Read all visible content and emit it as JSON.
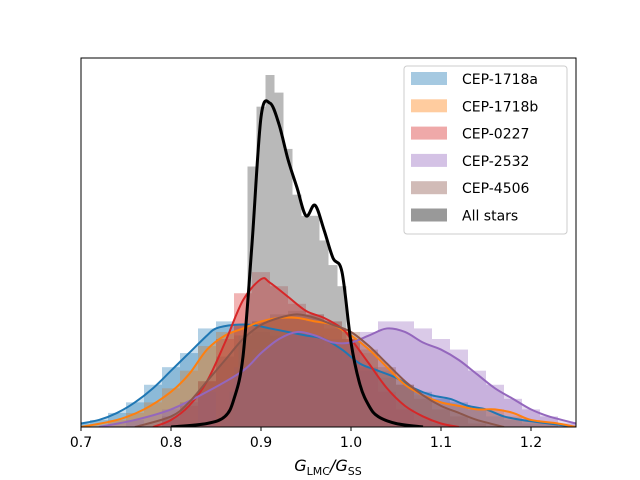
{
  "chart_data": {
    "type": "area",
    "title": "",
    "xlabel_main": "G",
    "xlabel_sub1": "LMC",
    "xlabel_mid": "/G",
    "xlabel_sub2": "SS",
    "ylabel": "",
    "xlim": [
      0.7,
      1.25
    ],
    "ylim": [
      0,
      1.0
    ],
    "x_ticks": [
      0.7,
      0.8,
      0.9,
      1.0,
      1.1,
      1.2
    ],
    "x_tick_labels": [
      "0.7",
      "0.8",
      "0.9",
      "1.0",
      "1.1",
      "1.2"
    ],
    "y_ticks_visible": false,
    "grid": false,
    "legend_position": "top-right",
    "series": [
      {
        "name": "CEP-1718a",
        "color": "#1f77b4",
        "kde": [
          [
            0.7,
            0.01
          ],
          [
            0.72,
            0.02
          ],
          [
            0.74,
            0.04
          ],
          [
            0.76,
            0.07
          ],
          [
            0.78,
            0.11
          ],
          [
            0.8,
            0.16
          ],
          [
            0.82,
            0.21
          ],
          [
            0.84,
            0.26
          ],
          [
            0.85,
            0.28
          ],
          [
            0.87,
            0.29
          ],
          [
            0.89,
            0.29
          ],
          [
            0.91,
            0.28
          ],
          [
            0.93,
            0.27
          ],
          [
            0.95,
            0.26
          ],
          [
            0.97,
            0.25
          ],
          [
            0.99,
            0.22
          ],
          [
            1.01,
            0.18
          ],
          [
            1.03,
            0.16
          ],
          [
            1.05,
            0.14
          ],
          [
            1.07,
            0.11
          ],
          [
            1.09,
            0.09
          ],
          [
            1.11,
            0.08
          ],
          [
            1.13,
            0.06
          ],
          [
            1.15,
            0.05
          ],
          [
            1.17,
            0.03
          ],
          [
            1.19,
            0.02
          ],
          [
            1.22,
            0.01
          ],
          [
            1.25,
            0.0
          ]
        ],
        "hist": [
          [
            0.7,
            0.01
          ],
          [
            0.72,
            0.02
          ],
          [
            0.74,
            0.04
          ],
          [
            0.76,
            0.07
          ],
          [
            0.78,
            0.12
          ],
          [
            0.8,
            0.17
          ],
          [
            0.82,
            0.21
          ],
          [
            0.84,
            0.28
          ],
          [
            0.86,
            0.3
          ],
          [
            0.88,
            0.29
          ],
          [
            0.9,
            0.27
          ],
          [
            0.92,
            0.26
          ],
          [
            0.94,
            0.26
          ],
          [
            0.96,
            0.25
          ],
          [
            0.98,
            0.22
          ],
          [
            1.0,
            0.19
          ],
          [
            1.02,
            0.16
          ],
          [
            1.04,
            0.14
          ],
          [
            1.06,
            0.12
          ],
          [
            1.08,
            0.1
          ],
          [
            1.1,
            0.08
          ],
          [
            1.12,
            0.07
          ],
          [
            1.14,
            0.05
          ],
          [
            1.16,
            0.03
          ],
          [
            1.18,
            0.02
          ],
          [
            1.2,
            0.01
          ],
          [
            1.22,
            0.01
          ],
          [
            1.24,
            0.0
          ]
        ]
      },
      {
        "name": "CEP-1718b",
        "color": "#ff7f0e",
        "kde": [
          [
            0.7,
            0.0
          ],
          [
            0.74,
            0.02
          ],
          [
            0.77,
            0.05
          ],
          [
            0.8,
            0.1
          ],
          [
            0.82,
            0.15
          ],
          [
            0.84,
            0.22
          ],
          [
            0.86,
            0.26
          ],
          [
            0.88,
            0.28
          ],
          [
            0.9,
            0.3
          ],
          [
            0.92,
            0.31
          ],
          [
            0.94,
            0.31
          ],
          [
            0.96,
            0.3
          ],
          [
            0.98,
            0.29
          ],
          [
            1.0,
            0.26
          ],
          [
            1.02,
            0.22
          ],
          [
            1.04,
            0.17
          ],
          [
            1.06,
            0.12
          ],
          [
            1.08,
            0.09
          ],
          [
            1.1,
            0.07
          ],
          [
            1.12,
            0.06
          ],
          [
            1.14,
            0.05
          ],
          [
            1.16,
            0.05
          ],
          [
            1.18,
            0.04
          ],
          [
            1.2,
            0.02
          ],
          [
            1.23,
            0.01
          ],
          [
            1.25,
            0.0
          ]
        ],
        "hist": [
          [
            0.74,
            0.02
          ],
          [
            0.76,
            0.04
          ],
          [
            0.78,
            0.07
          ],
          [
            0.8,
            0.11
          ],
          [
            0.82,
            0.16
          ],
          [
            0.84,
            0.23
          ],
          [
            0.86,
            0.27
          ],
          [
            0.88,
            0.29
          ],
          [
            0.9,
            0.3
          ],
          [
            0.92,
            0.31
          ],
          [
            0.94,
            0.31
          ],
          [
            0.96,
            0.3
          ],
          [
            0.98,
            0.28
          ],
          [
            1.0,
            0.25
          ],
          [
            1.02,
            0.21
          ],
          [
            1.04,
            0.16
          ],
          [
            1.06,
            0.12
          ],
          [
            1.08,
            0.09
          ],
          [
            1.1,
            0.07
          ],
          [
            1.12,
            0.06
          ],
          [
            1.14,
            0.05
          ],
          [
            1.16,
            0.05
          ],
          [
            1.18,
            0.03
          ],
          [
            1.2,
            0.02
          ],
          [
            1.22,
            0.01
          ],
          [
            1.24,
            0.0
          ]
        ]
      },
      {
        "name": "CEP-0227",
        "color": "#d62728",
        "kde": [
          [
            0.78,
            0.0
          ],
          [
            0.8,
            0.02
          ],
          [
            0.82,
            0.06
          ],
          [
            0.84,
            0.13
          ],
          [
            0.86,
            0.24
          ],
          [
            0.88,
            0.36
          ],
          [
            0.9,
            0.42
          ],
          [
            0.91,
            0.41
          ],
          [
            0.93,
            0.37
          ],
          [
            0.95,
            0.33
          ],
          [
            0.97,
            0.31
          ],
          [
            0.99,
            0.28
          ],
          [
            1.0,
            0.25
          ],
          [
            1.02,
            0.18
          ],
          [
            1.04,
            0.11
          ],
          [
            1.06,
            0.06
          ],
          [
            1.08,
            0.03
          ],
          [
            1.1,
            0.01
          ],
          [
            1.12,
            0.0
          ]
        ],
        "hist": [
          [
            0.8,
            0.02
          ],
          [
            0.82,
            0.06
          ],
          [
            0.84,
            0.13
          ],
          [
            0.86,
            0.25
          ],
          [
            0.88,
            0.38
          ],
          [
            0.9,
            0.44
          ],
          [
            0.92,
            0.4
          ],
          [
            0.94,
            0.35
          ],
          [
            0.96,
            0.32
          ],
          [
            0.98,
            0.3
          ],
          [
            1.0,
            0.25
          ],
          [
            1.02,
            0.17
          ],
          [
            1.04,
            0.1
          ],
          [
            1.06,
            0.05
          ],
          [
            1.08,
            0.02
          ],
          [
            1.1,
            0.01
          ]
        ]
      },
      {
        "name": "CEP-2532",
        "color": "#9467bd",
        "kde": [
          [
            0.72,
            0.0
          ],
          [
            0.76,
            0.02
          ],
          [
            0.8,
            0.05
          ],
          [
            0.84,
            0.1
          ],
          [
            0.88,
            0.16
          ],
          [
            0.9,
            0.21
          ],
          [
            0.92,
            0.25
          ],
          [
            0.94,
            0.27
          ],
          [
            0.96,
            0.26
          ],
          [
            0.98,
            0.24
          ],
          [
            1.0,
            0.24
          ],
          [
            1.02,
            0.26
          ],
          [
            1.04,
            0.28
          ],
          [
            1.06,
            0.27
          ],
          [
            1.08,
            0.24
          ],
          [
            1.1,
            0.22
          ],
          [
            1.12,
            0.19
          ],
          [
            1.14,
            0.15
          ],
          [
            1.16,
            0.11
          ],
          [
            1.18,
            0.08
          ],
          [
            1.2,
            0.05
          ],
          [
            1.22,
            0.03
          ],
          [
            1.25,
            0.01
          ]
        ],
        "hist": [
          [
            0.76,
            0.02
          ],
          [
            0.8,
            0.05
          ],
          [
            0.84,
            0.1
          ],
          [
            0.88,
            0.17
          ],
          [
            0.9,
            0.22
          ],
          [
            0.92,
            0.25
          ],
          [
            0.94,
            0.27
          ],
          [
            0.96,
            0.26
          ],
          [
            0.98,
            0.25
          ],
          [
            1.0,
            0.25
          ],
          [
            1.02,
            0.27
          ],
          [
            1.04,
            0.3
          ],
          [
            1.06,
            0.3
          ],
          [
            1.08,
            0.28
          ],
          [
            1.1,
            0.25
          ],
          [
            1.12,
            0.22
          ],
          [
            1.14,
            0.16
          ],
          [
            1.16,
            0.12
          ],
          [
            1.18,
            0.08
          ],
          [
            1.2,
            0.05
          ],
          [
            1.22,
            0.03
          ],
          [
            1.24,
            0.01
          ]
        ]
      },
      {
        "name": "CEP-4506",
        "color": "#8c564b",
        "kde": [
          [
            0.76,
            0.0
          ],
          [
            0.8,
            0.03
          ],
          [
            0.82,
            0.07
          ],
          [
            0.84,
            0.13
          ],
          [
            0.86,
            0.19
          ],
          [
            0.88,
            0.25
          ],
          [
            0.9,
            0.29
          ],
          [
            0.92,
            0.31
          ],
          [
            0.94,
            0.32
          ],
          [
            0.96,
            0.31
          ],
          [
            0.98,
            0.29
          ],
          [
            1.0,
            0.27
          ],
          [
            1.02,
            0.23
          ],
          [
            1.04,
            0.18
          ],
          [
            1.06,
            0.13
          ],
          [
            1.08,
            0.09
          ],
          [
            1.1,
            0.06
          ],
          [
            1.12,
            0.04
          ],
          [
            1.14,
            0.02
          ],
          [
            1.17,
            0.0
          ]
        ],
        "hist": [
          [
            0.8,
            0.03
          ],
          [
            0.82,
            0.07
          ],
          [
            0.84,
            0.13
          ],
          [
            0.86,
            0.2
          ],
          [
            0.88,
            0.26
          ],
          [
            0.9,
            0.3
          ],
          [
            0.92,
            0.32
          ],
          [
            0.94,
            0.33
          ],
          [
            0.96,
            0.32
          ],
          [
            0.98,
            0.3
          ],
          [
            1.0,
            0.27
          ],
          [
            1.02,
            0.22
          ],
          [
            1.04,
            0.17
          ],
          [
            1.06,
            0.12
          ],
          [
            1.08,
            0.08
          ],
          [
            1.1,
            0.05
          ],
          [
            1.12,
            0.03
          ],
          [
            1.14,
            0.01
          ]
        ]
      },
      {
        "name": "All stars",
        "color": "#000000",
        "kde": [
          [
            0.8,
            0.0
          ],
          [
            0.84,
            0.01
          ],
          [
            0.86,
            0.03
          ],
          [
            0.87,
            0.08
          ],
          [
            0.88,
            0.2
          ],
          [
            0.89,
            0.52
          ],
          [
            0.9,
            0.88
          ],
          [
            0.91,
            0.92
          ],
          [
            0.92,
            0.86
          ],
          [
            0.93,
            0.76
          ],
          [
            0.94,
            0.68
          ],
          [
            0.95,
            0.6
          ],
          [
            0.96,
            0.63
          ],
          [
            0.97,
            0.56
          ],
          [
            0.98,
            0.48
          ],
          [
            0.99,
            0.44
          ],
          [
            1.0,
            0.24
          ],
          [
            1.01,
            0.12
          ],
          [
            1.02,
            0.06
          ],
          [
            1.03,
            0.03
          ],
          [
            1.05,
            0.01
          ],
          [
            1.08,
            0.0
          ]
        ],
        "hist": [
          [
            0.86,
            0.02
          ],
          [
            0.87,
            0.1
          ],
          [
            0.88,
            0.26
          ],
          [
            0.89,
            0.74
          ],
          [
            0.9,
            0.91
          ],
          [
            0.91,
            1.0
          ],
          [
            0.92,
            0.95
          ],
          [
            0.93,
            0.79
          ],
          [
            0.94,
            0.66
          ],
          [
            0.95,
            0.6
          ],
          [
            0.96,
            0.6
          ],
          [
            0.97,
            0.53
          ],
          [
            0.98,
            0.46
          ],
          [
            0.99,
            0.4
          ],
          [
            1.0,
            0.24
          ],
          [
            1.01,
            0.12
          ],
          [
            1.02,
            0.06
          ],
          [
            1.03,
            0.03
          ],
          [
            1.04,
            0.01
          ]
        ]
      }
    ]
  }
}
